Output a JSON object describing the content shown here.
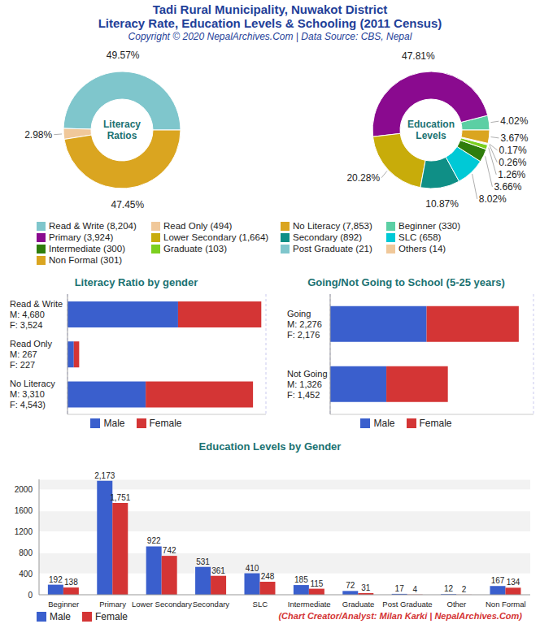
{
  "header": {
    "title": [
      "Tadi Rural Municipality, Nuwakot District",
      "Literacy Rate, Education Levels & Schooling (2011 Census)"
    ],
    "subtitle": "Copyright © 2020 NepalArchives.Com | Data Source: CBS, Nepal"
  },
  "footer": "(Chart Creator/Analyst: Milan Karki | NepalArchives.Com)",
  "chart_data": [
    {
      "type": "pie",
      "title": "Literacy Ratios",
      "categories": [
        "Read & Write (8,204)",
        "Read Only (494)",
        "No Literacy (7,853)"
      ],
      "values": [
        49.57,
        2.98,
        47.45
      ],
      "value_labels": [
        "49.57%",
        "2.98%",
        "47.45%"
      ],
      "colors": [
        "#7fc6cc",
        "#f0c89a",
        "#daa520"
      ],
      "data_labels": true,
      "legend": "bottom"
    },
    {
      "type": "pie",
      "title": "Education Levels",
      "categories": [
        "Beginner (330)",
        "Primary (3,924)",
        "Lower Secondary (1,664)",
        "Secondary (892)",
        "SLC (658)",
        "Intermediate (300)",
        "Graduate (103)",
        "Post Graduate (21)",
        "Others (14)",
        "Non Formal (301)"
      ],
      "values": [
        4.02,
        47.81,
        20.28,
        10.87,
        8.02,
        3.66,
        1.26,
        0.26,
        0.17,
        3.67
      ],
      "value_labels": [
        "4.02%",
        "47.81%",
        "20.28%",
        "10.87%",
        "8.02%",
        "3.66%",
        "1.26%",
        "0.26%",
        "0.17%",
        "3.67%"
      ],
      "colors": [
        "#5ccfa4",
        "#8a0a8f",
        "#c8ac0a",
        "#0f8f86",
        "#00c9d6",
        "#2f7d0c",
        "#7ccf1f",
        "#7fc6cc",
        "#f0c89a",
        "#daa520"
      ],
      "data_labels": true,
      "legend": "bottom"
    },
    {
      "type": "bar",
      "title": "Literacy Ratio by gender",
      "orientation": "horizontal",
      "stacked": true,
      "categories": [
        "Read & Write\nM: 4,680\nF: 3,524",
        "Read Only\nM: 267\nF: 227",
        "No Literacy\nM: 3,310\nF: 4,543)"
      ],
      "series": [
        {
          "name": "Male",
          "color": "#3a5fcd",
          "values": [
            4680,
            267,
            3310
          ]
        },
        {
          "name": "Female",
          "color": "#d43535",
          "values": [
            3524,
            227,
            4543
          ]
        }
      ],
      "xlim": [
        0,
        8400
      ],
      "xticks": [
        0,
        1200,
        2400,
        3600,
        4800,
        6000,
        7200,
        8400
      ],
      "grid": true,
      "tick_labels": "y",
      "legend": "bottom"
    },
    {
      "type": "bar",
      "title": "Going/Not Going to School (5-25 years)",
      "orientation": "horizontal",
      "stacked": true,
      "categories": [
        "Going\nM: 2,276\nF: 2,176",
        "Not Going\nM: 1,326\nF: 1,452"
      ],
      "series": [
        {
          "name": "Male",
          "color": "#3a5fcd",
          "values": [
            2276,
            1326
          ]
        },
        {
          "name": "Female",
          "color": "#d43535",
          "values": [
            2176,
            1452
          ]
        }
      ],
      "xlim": [
        0,
        4800
      ],
      "xticks": [
        0,
        600,
        1200,
        1800,
        2400,
        3000,
        3600,
        4200,
        4800
      ],
      "grid": true,
      "tick_labels": "y",
      "legend": "bottom"
    },
    {
      "type": "bar",
      "title": "Education Levels by Gender",
      "categories": [
        "Beginner",
        "Primary",
        "Lower Secondary",
        "Secondary",
        "SLC",
        "Intermediate",
        "Graduate",
        "Post Graduate",
        "Other",
        "Non Formal"
      ],
      "series": [
        {
          "name": "Male",
          "color": "#3a5fcd",
          "values": [
            192,
            2173,
            922,
            531,
            410,
            185,
            72,
            17,
            12,
            167
          ],
          "value_labels": [
            "192",
            "2,173",
            "922",
            "531",
            "410",
            "185",
            "72",
            "17",
            "12",
            "167"
          ]
        },
        {
          "name": "Female",
          "color": "#d43535",
          "values": [
            138,
            1751,
            742,
            361,
            248,
            115,
            31,
            4,
            2,
            134
          ],
          "value_labels": [
            "138",
            "1,751",
            "742",
            "361",
            "248",
            "115",
            "31",
            "4",
            "2",
            "134"
          ]
        }
      ],
      "ylim": [
        0,
        2200
      ],
      "yticks": [
        0,
        400,
        800,
        1200,
        1600,
        2000
      ],
      "grid": true,
      "data_labels": true,
      "legend": "bottom left"
    }
  ]
}
